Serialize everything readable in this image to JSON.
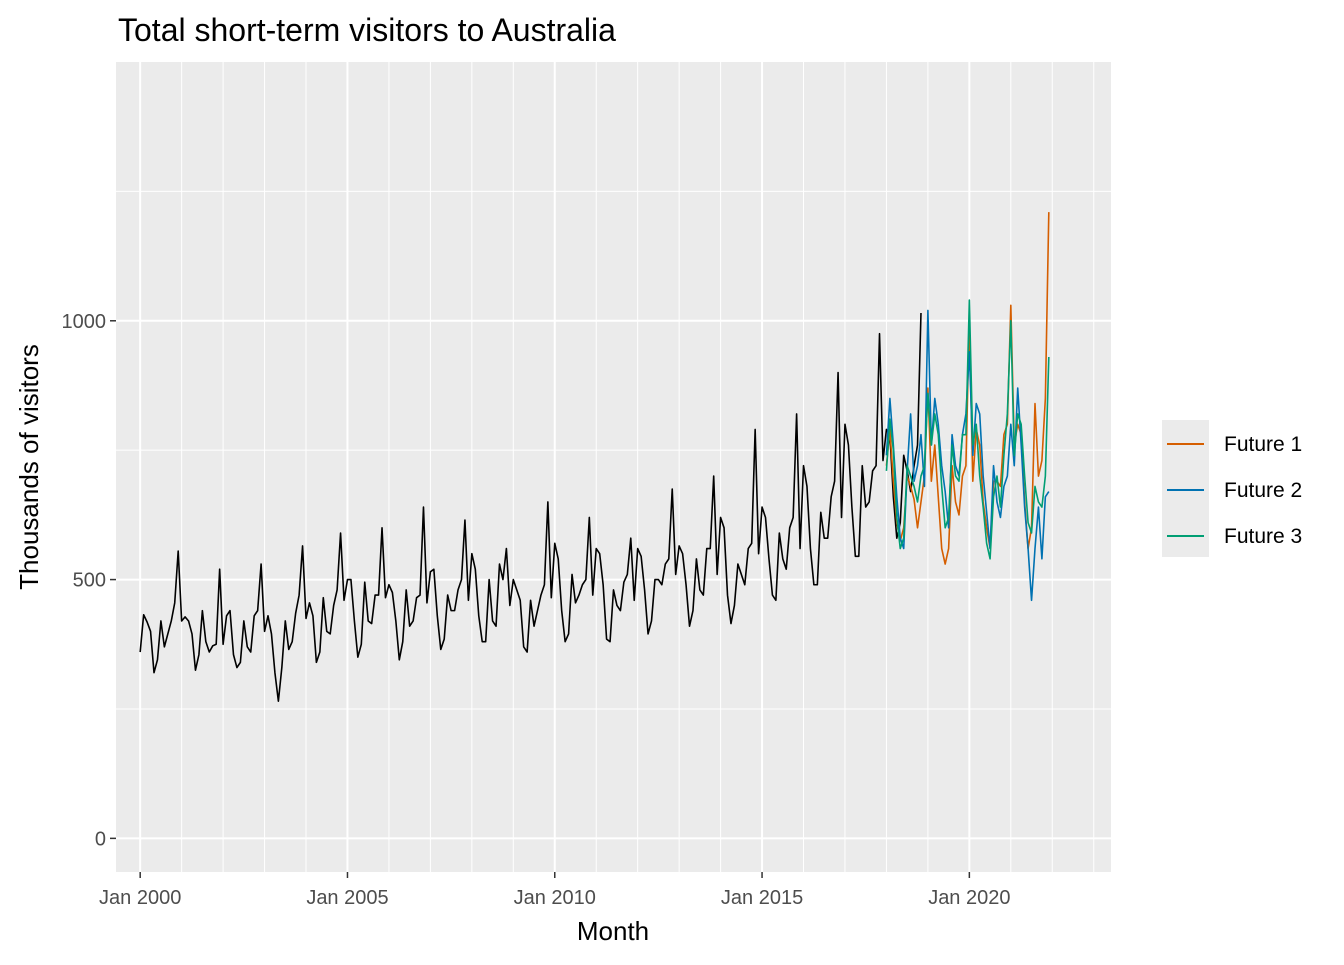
{
  "chart_data": {
    "type": "line",
    "title": "Total short-term visitors to Australia",
    "xlabel": "Month",
    "ylabel": "Thousands of visitors",
    "x_ticks": [
      "Jan 2000",
      "Jan 2005",
      "Jan 2010",
      "Jan 2015",
      "Jan 2020"
    ],
    "y_ticks": [
      "0",
      "500",
      "1000"
    ],
    "xlim": [
      "1999-06",
      "2023-06"
    ],
    "ylim": [
      -65,
      1500
    ],
    "grid": true,
    "legend_position": "right",
    "colors": {
      "history": "#000000",
      "Future 1": "#D55E00",
      "Future 2": "#0072B2",
      "Future 3": "#009E73"
    },
    "series": [
      {
        "name": "",
        "start": "2000-01",
        "values": [
          360,
          432,
          418,
          400,
          320,
          345,
          420,
          370,
          395,
          420,
          455,
          555,
          420,
          428,
          420,
          395,
          325,
          355,
          440,
          380,
          360,
          372,
          375,
          520,
          375,
          430,
          440,
          355,
          330,
          340,
          420,
          370,
          360,
          430,
          440,
          530,
          400,
          430,
          395,
          320,
          265,
          330,
          420,
          365,
          380,
          435,
          470,
          565,
          425,
          455,
          430,
          340,
          360,
          465,
          400,
          395,
          450,
          480,
          590,
          460,
          500,
          500,
          420,
          350,
          375,
          495,
          420,
          415,
          470,
          470,
          600,
          465,
          490,
          475,
          420,
          345,
          380,
          480,
          410,
          420,
          465,
          470,
          640,
          455,
          515,
          520,
          430,
          365,
          385,
          470,
          440,
          440,
          480,
          500,
          615,
          460,
          550,
          520,
          430,
          380,
          380,
          500,
          420,
          410,
          530,
          500,
          560,
          450,
          500,
          480,
          460,
          370,
          360,
          460,
          410,
          440,
          470,
          490,
          650,
          465,
          570,
          540,
          440,
          380,
          395,
          510,
          455,
          470,
          490,
          500,
          620,
          470,
          560,
          550,
          490,
          385,
          380,
          480,
          450,
          440,
          495,
          510,
          580,
          460,
          560,
          545,
          480,
          395,
          420,
          500,
          500,
          490,
          530,
          540,
          675,
          510,
          565,
          550,
          490,
          410,
          440,
          540,
          480,
          470,
          560,
          560,
          700,
          510,
          620,
          600,
          470,
          415,
          450,
          530,
          510,
          490,
          560,
          570,
          790,
          550,
          640,
          620,
          540,
          470,
          460,
          590,
          540,
          520,
          600,
          620,
          820,
          560,
          720,
          680,
          560,
          490,
          490,
          630,
          580,
          580,
          660,
          690,
          900,
          620,
          800,
          760,
          640,
          545,
          545,
          720,
          640,
          650,
          710,
          720,
          975,
          730,
          790,
          780,
          660,
          580,
          610,
          740,
          710,
          670,
          720,
          760,
          1015
        ]
      },
      {
        "name": "Future 1",
        "start": "2018-01",
        "values": [
          720,
          790,
          690,
          610,
          575,
          600,
          700,
          680,
          655,
          600,
          650,
          700,
          870,
          690,
          760,
          660,
          560,
          530,
          560,
          720,
          650,
          625,
          700,
          720,
          1000,
          690,
          790,
          760,
          650,
          600,
          560,
          690,
          690,
          680,
          780,
          800,
          1030,
          760,
          800,
          780,
          650,
          560,
          600,
          840,
          700,
          730,
          850,
          1210
        ]
      },
      {
        "name": "Future 2",
        "start": "2018-01",
        "values": [
          740,
          850,
          760,
          660,
          580,
          560,
          710,
          820,
          690,
          720,
          780,
          680,
          1020,
          760,
          850,
          800,
          720,
          670,
          600,
          780,
          720,
          700,
          780,
          820,
          940,
          740,
          840,
          820,
          700,
          630,
          560,
          720,
          650,
          620,
          680,
          700,
          800,
          720,
          870,
          760,
          640,
          560,
          460,
          560,
          640,
          540,
          660,
          670
        ]
      },
      {
        "name": "Future 3",
        "start": "2018-01",
        "values": [
          710,
          810,
          750,
          620,
          560,
          580,
          720,
          700,
          680,
          650,
          700,
          720,
          860,
          760,
          820,
          780,
          680,
          600,
          620,
          760,
          700,
          690,
          780,
          780,
          1040,
          760,
          800,
          700,
          640,
          570,
          540,
          660,
          700,
          640,
          740,
          820,
          1000,
          740,
          820,
          800,
          700,
          610,
          590,
          680,
          650,
          640,
          700,
          930
        ]
      }
    ]
  }
}
